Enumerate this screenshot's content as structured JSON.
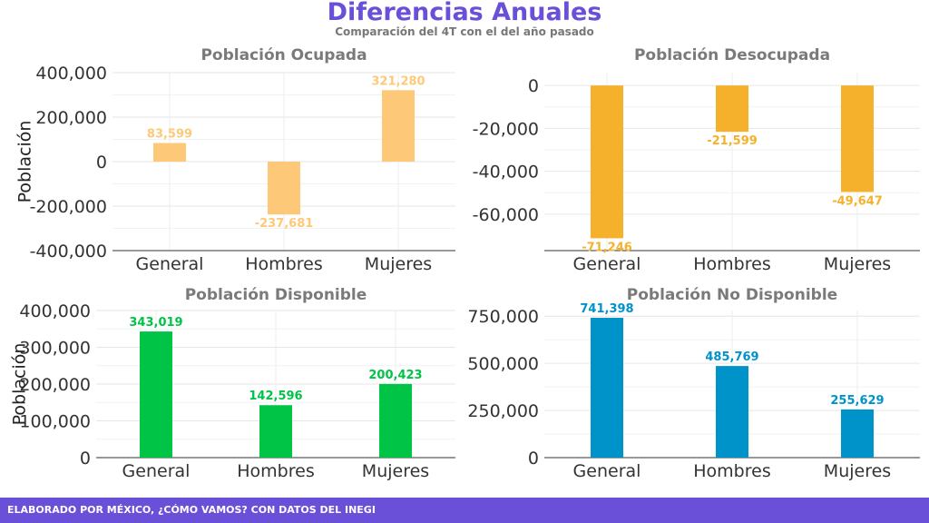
{
  "title": "Diferencias Anuales",
  "subtitle": "Comparación del 4T con el del año pasado",
  "footer": "ELABORADO POR MÉXICO, ¿CÓMO VAMOS? CON DATOS DEL INEGI",
  "chart_data": [
    {
      "type": "bar",
      "title": "Población Ocupada",
      "ylabel": "Población",
      "categories": [
        "General",
        "Hombres",
        "Mujeres"
      ],
      "values": [
        83599,
        -237681,
        321280
      ],
      "value_labels": [
        "83,599",
        "-237,681",
        "321,280"
      ],
      "ylim": [
        -400000,
        400000
      ],
      "yticks": [
        -400000,
        -200000,
        0,
        200000,
        400000
      ],
      "ytick_labels": [
        "-400,000",
        "-200,000",
        "0",
        "200,000",
        "400,000"
      ],
      "color": "#fdc978",
      "grid": true
    },
    {
      "type": "bar",
      "title": "Población Desocupada",
      "ylabel": "",
      "categories": [
        "General",
        "Hombres",
        "Mujeres"
      ],
      "values": [
        -71246,
        -21599,
        -49647
      ],
      "value_labels": [
        "-71,246",
        "-21,599",
        "-49,647"
      ],
      "ylim": [
        -77000,
        6000
      ],
      "yticks": [
        -60000,
        -40000,
        -20000,
        0
      ],
      "ytick_labels": [
        "-60,000",
        "-40,000",
        "-20,000",
        "0"
      ],
      "color": "#f5b12b",
      "grid": true
    },
    {
      "type": "bar",
      "title": "Población Disponible",
      "ylabel": "Población",
      "categories": [
        "General",
        "Hombres",
        "Mujeres"
      ],
      "values": [
        343019,
        142596,
        200423
      ],
      "value_labels": [
        "343,019",
        "142,596",
        "200,423"
      ],
      "ylim": [
        0,
        400000
      ],
      "yticks": [
        0,
        100000,
        200000,
        300000,
        400000
      ],
      "ytick_labels": [
        "0",
        "100,000",
        "200,000",
        "300,000",
        "400,000"
      ],
      "color": "#00c446",
      "grid": true
    },
    {
      "type": "bar",
      "title": "Población No Disponible",
      "ylabel": "",
      "categories": [
        "General",
        "Hombres",
        "Mujeres"
      ],
      "values": [
        741398,
        485769,
        255629
      ],
      "value_labels": [
        "741,398",
        "485,769",
        "255,629"
      ],
      "ylim": [
        0,
        780000
      ],
      "yticks": [
        0,
        250000,
        500000,
        750000
      ],
      "ytick_labels": [
        "0",
        "250,000",
        "500,000",
        "750,000"
      ],
      "color": "#0093c9",
      "grid": true
    }
  ]
}
